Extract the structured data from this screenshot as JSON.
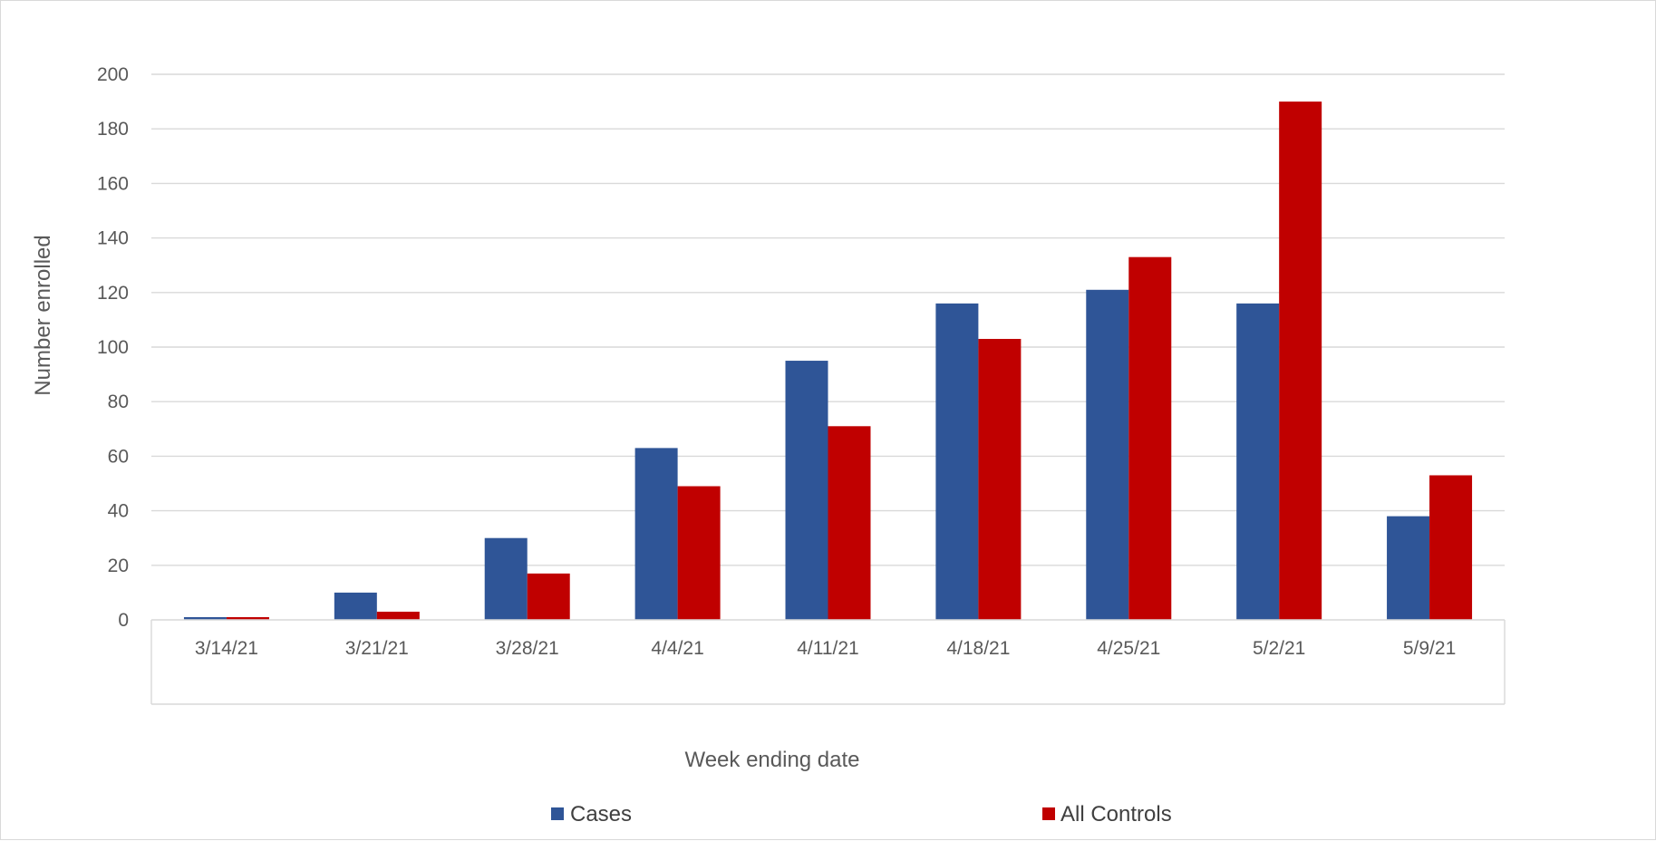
{
  "chart_data": {
    "type": "bar",
    "title": "",
    "xlabel": "Week ending date",
    "ylabel": "Number enrolled",
    "categories": [
      "3/14/21",
      "3/21/21",
      "3/28/21",
      "4/4/21",
      "4/11/21",
      "4/18/21",
      "4/25/21",
      "5/2/21",
      "5/9/21"
    ],
    "series": [
      {
        "name": "Cases",
        "color": "#2f5597",
        "values": [
          1,
          10,
          30,
          63,
          95,
          116,
          121,
          116,
          38
        ]
      },
      {
        "name": "All Controls",
        "color": "#c00000",
        "values": [
          1,
          3,
          17,
          49,
          71,
          103,
          133,
          190,
          53
        ]
      }
    ],
    "ylim": [
      0,
      200
    ],
    "yticks": [
      "0",
      "20",
      "40",
      "60",
      "80",
      "100",
      "120",
      "140",
      "160",
      "180",
      "200"
    ],
    "grid": true,
    "legend_position": "bottom"
  }
}
